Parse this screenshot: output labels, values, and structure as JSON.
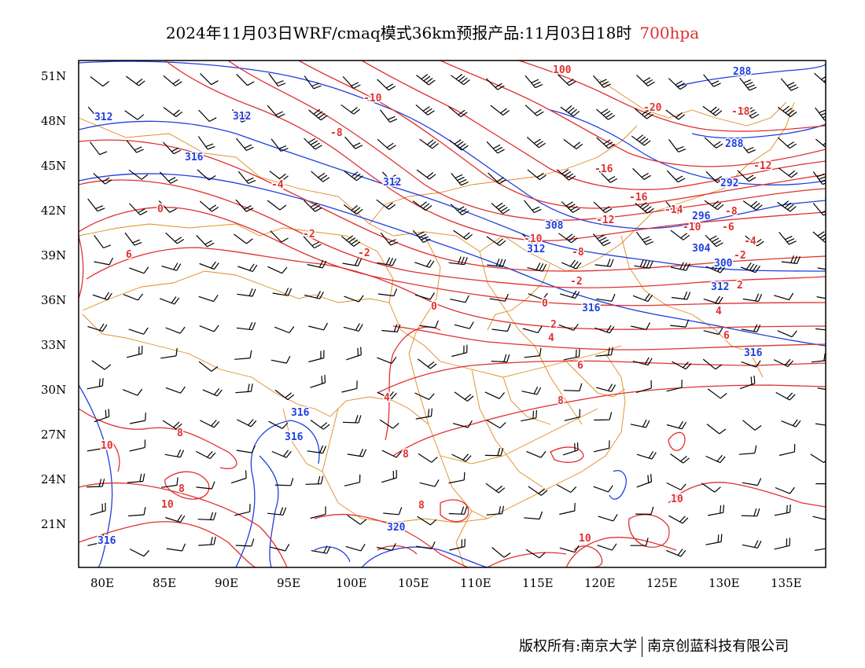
{
  "title": {
    "text": "2024年11月03日WRF/cmaq模式36km预报产品:11月03日18时",
    "level": "700hpa"
  },
  "chart_data": {
    "type": "map",
    "x_ticks": [
      "80E",
      "85E",
      "90E",
      "95E",
      "100E",
      "105E",
      "110E",
      "115E",
      "120E",
      "125E",
      "130E",
      "135E"
    ],
    "y_ticks": [
      "51N",
      "48N",
      "45N",
      "42N",
      "39N",
      "36N",
      "33N",
      "30N",
      "27N",
      "24N",
      "21N"
    ],
    "temperature_labels": [
      "-20",
      "-20",
      "-18",
      "-16",
      "-16",
      "-14",
      "-12",
      "-12",
      "-10",
      "-10",
      "-10",
      "-8",
      "-8",
      "-8",
      "-6",
      "-6",
      "-4",
      "-4",
      "-2",
      "-2",
      "-2",
      "-2",
      "0",
      "0",
      "0",
      "2",
      "2",
      "4",
      "4",
      "4",
      "6",
      "6",
      "6",
      "8",
      "8",
      "8",
      "8",
      "8",
      "10",
      "10",
      "10",
      "10",
      "10"
    ],
    "height_labels": [
      "288",
      "288",
      "292",
      "296",
      "300",
      "304",
      "308",
      "312",
      "312",
      "312",
      "312",
      "312",
      "316",
      "316",
      "316",
      "316",
      "316",
      "316",
      "320"
    ],
    "colors": {
      "temperature": "#e03030",
      "height": "#1f3fe0",
      "boundary": "#e08a20",
      "wind": "#000000"
    }
  },
  "copyright": {
    "left": "版权所有:南京大学",
    "right": "南京创蓝科技有限公司"
  }
}
